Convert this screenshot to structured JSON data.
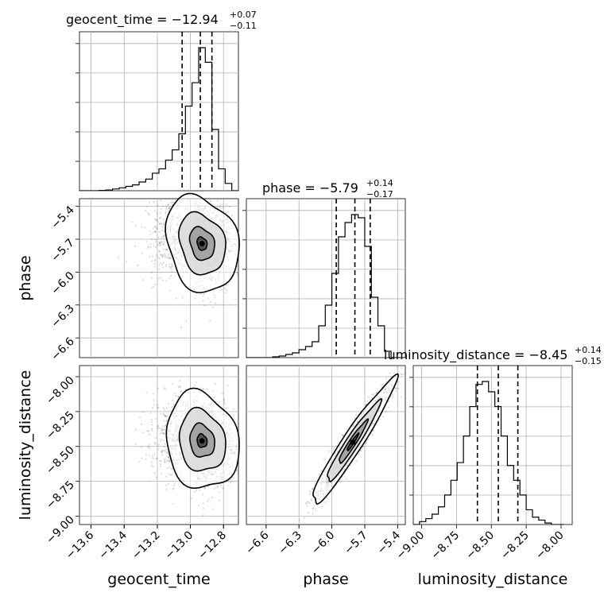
{
  "chart_data": {
    "type": "corner",
    "parameters": [
      {
        "name": "geocent_time",
        "label": "geocent_time",
        "range": [
          -13.67,
          -12.71
        ],
        "ticks": [
          -13.6,
          -13.4,
          -13.2,
          -13.0,
          -12.8
        ],
        "tick_labels": [
          "−13.6",
          "−13.4",
          "−13.2",
          "−13.0",
          "−12.8"
        ],
        "median": -12.94,
        "lower": -13.05,
        "upper": -12.87,
        "title": {
          "main": "geocent_time = −12.94",
          "plus": "+0.07",
          "minus": "−0.11"
        },
        "hist_bins": [
          -13.67,
          -13.63,
          -13.59,
          -13.55,
          -13.51,
          -13.47,
          -13.43,
          -13.39,
          -13.35,
          -13.31,
          -13.27,
          -13.23,
          -13.19,
          -13.15,
          -13.11,
          -13.07,
          -13.03,
          -12.99,
          -12.95,
          -12.91,
          -12.87,
          -12.83,
          -12.79,
          -12.75,
          -12.71
        ],
        "hist": [
          0.0,
          0.0,
          0.0,
          0.002,
          0.005,
          0.012,
          0.02,
          0.03,
          0.04,
          0.06,
          0.08,
          0.12,
          0.15,
          0.21,
          0.28,
          0.39,
          0.58,
          0.74,
          0.98,
          0.88,
          0.42,
          0.15,
          0.05,
          0.0
        ]
      },
      {
        "name": "phase",
        "label": "phase",
        "range": [
          -6.78,
          -5.33
        ],
        "ticks": [
          -6.6,
          -6.3,
          -6.0,
          -5.7,
          -5.4
        ],
        "tick_labels": [
          "−6.6",
          "−6.3",
          "−6.0",
          "−5.7",
          "−5.4"
        ],
        "median": -5.79,
        "lower": -5.96,
        "upper": -5.65,
        "title": {
          "main": "phase = −5.79",
          "plus": "+0.14",
          "minus": "−0.17"
        },
        "hist_bins": [
          -6.78,
          -6.72,
          -6.66,
          -6.6,
          -6.54,
          -6.48,
          -6.42,
          -6.36,
          -6.3,
          -6.24,
          -6.18,
          -6.12,
          -6.06,
          -6.0,
          -5.94,
          -5.88,
          -5.82,
          -5.76,
          -5.7,
          -5.64,
          -5.58,
          -5.52,
          -5.46,
          -5.4,
          -5.34
        ],
        "hist": [
          0.0,
          0.0,
          0.0,
          0.0,
          0.005,
          0.01,
          0.02,
          0.03,
          0.05,
          0.07,
          0.1,
          0.2,
          0.33,
          0.53,
          0.76,
          0.85,
          0.9,
          0.88,
          0.7,
          0.38,
          0.2,
          0.04,
          0.0,
          0.0
        ]
      },
      {
        "name": "luminosity_distance",
        "label": "luminosity_distance",
        "range": [
          -9.06,
          -7.92
        ],
        "ticks": [
          -9.0,
          -8.75,
          -8.5,
          -8.25,
          -8.0
        ],
        "tick_labels": [
          "−9.00",
          "−8.75",
          "−8.50",
          "−8.25",
          "−8.00"
        ],
        "median": -8.45,
        "lower": -8.6,
        "upper": -8.31,
        "title": {
          "main": "luminosity_distance = −8.45",
          "plus": "+0.14",
          "minus": "−0.15"
        },
        "hist_bins": [
          -9.06,
          -9.015,
          -8.97,
          -8.925,
          -8.88,
          -8.835,
          -8.79,
          -8.745,
          -8.7,
          -8.655,
          -8.61,
          -8.565,
          -8.52,
          -8.475,
          -8.43,
          -8.385,
          -8.34,
          -8.295,
          -8.25,
          -8.205,
          -8.16,
          -8.115,
          -8.07,
          -8.025,
          -7.98
        ],
        "hist": [
          0.0,
          0.02,
          0.04,
          0.07,
          0.12,
          0.2,
          0.3,
          0.42,
          0.6,
          0.8,
          0.95,
          0.97,
          0.9,
          0.8,
          0.6,
          0.4,
          0.3,
          0.2,
          0.1,
          0.05,
          0.03,
          0.01,
          0.0,
          0.0
        ]
      }
    ],
    "pairs": [
      {
        "x": "geocent_time",
        "y": "phase",
        "center": [
          -12.93,
          -5.74
        ],
        "cov": [
          [
            0.01,
            -0.004
          ],
          [
            -0.004,
            0.04
          ]
        ]
      },
      {
        "x": "geocent_time",
        "y": "luminosity_distance",
        "center": [
          -12.93,
          -8.46
        ],
        "cov": [
          [
            0.01,
            -0.002
          ],
          [
            -0.002,
            0.025
          ]
        ]
      },
      {
        "x": "phase",
        "y": "luminosity_distance",
        "center": [
          -5.81,
          -8.47
        ],
        "cov": [
          [
            0.03,
            0.034
          ],
          [
            0.034,
            0.042
          ]
        ]
      }
    ],
    "grid": true
  }
}
